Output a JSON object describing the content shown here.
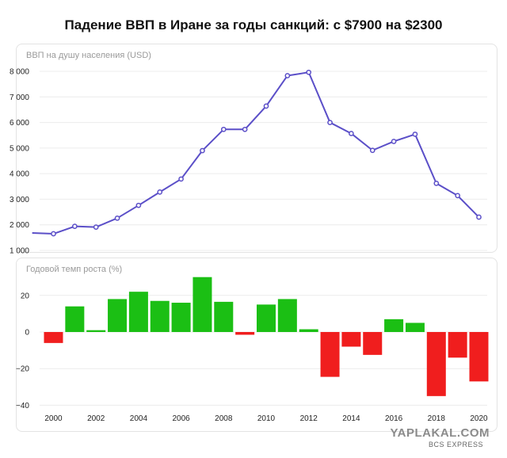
{
  "title": "Падение ВВП в Иране за годы санкций: с $7900 на $2300",
  "watermark": "YAPLAKAL.COM",
  "watermark_sub": "BCS EXPRESS",
  "colors": {
    "line": "#5b4fc8",
    "positive": "#1bbf14",
    "negative": "#f01e1e",
    "grid": "#ececec"
  },
  "chart_data": [
    {
      "type": "line",
      "title": "ВВП на душу населения (USD)",
      "x": [
        1999,
        2000,
        2001,
        2002,
        2003,
        2004,
        2005,
        2006,
        2007,
        2008,
        2009,
        2010,
        2011,
        2012,
        2013,
        2014,
        2015,
        2016,
        2017,
        2018,
        2019,
        2020
      ],
      "series": [
        {
          "values": [
            1680,
            1650,
            1940,
            1910,
            2260,
            2760,
            3280,
            3790,
            4900,
            5730,
            5730,
            6640,
            7830,
            7960,
            6000,
            5570,
            4910,
            5260,
            5540,
            3620,
            3140,
            2300
          ]
        }
      ],
      "yticks": [
        "1 000",
        "2 000",
        "3 000",
        "4 000",
        "5 000",
        "6 000",
        "7 000",
        "8 000"
      ],
      "ytick_values": [
        1000,
        2000,
        3000,
        4000,
        5000,
        6000,
        7000,
        8000
      ],
      "ylim": [
        1000,
        8400
      ],
      "grid": true
    },
    {
      "type": "bar",
      "title": "Годовой темп роста (%)",
      "x": [
        2000,
        2001,
        2002,
        2003,
        2004,
        2005,
        2006,
        2007,
        2008,
        2009,
        2010,
        2011,
        2012,
        2013,
        2014,
        2015,
        2016,
        2017,
        2018,
        2019,
        2020
      ],
      "values": [
        -6,
        14,
        1,
        18,
        22,
        17,
        16,
        30,
        16.5,
        -1.5,
        15,
        18,
        1.5,
        -24.5,
        -8,
        -12.5,
        7,
        5,
        -35,
        -14,
        -27
      ],
      "yticks": [
        "20",
        "0",
        "−20",
        "−40"
      ],
      "ytick_values": [
        20,
        0,
        -20,
        -40
      ],
      "ylim": [
        -41,
        33
      ],
      "xticks": [
        "2000",
        "2002",
        "2004",
        "2006",
        "2008",
        "2010",
        "2012",
        "2014",
        "2016",
        "2018",
        "2020"
      ],
      "xtick_values": [
        2000,
        2002,
        2004,
        2006,
        2008,
        2010,
        2012,
        2014,
        2016,
        2018,
        2020
      ],
      "grid": true
    }
  ]
}
